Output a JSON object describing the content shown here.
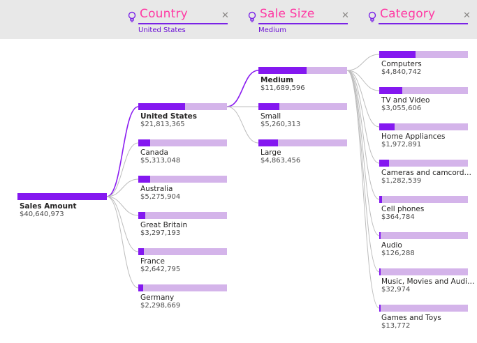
{
  "colors": {
    "fill": "#8418f0",
    "track": "#d4b4ea",
    "title": "#ff3ba4",
    "link_active": "#8a1cf0",
    "link": "#bdbdbd"
  },
  "columns": [
    {
      "title": "Country",
      "selected": "United States",
      "icon": "lightbulb-icon"
    },
    {
      "title": "Sale Size",
      "selected": "Medium",
      "icon": "lightbulb-icon"
    },
    {
      "title": "Category",
      "selected": "",
      "icon": "lightbulb-icon"
    }
  ],
  "root": {
    "label": "Sales Amount",
    "value": "$40,640,973",
    "fill": 1.0
  },
  "countries": [
    {
      "label": "United States",
      "value": "$21,813,365",
      "fill": 0.53,
      "selected": true
    },
    {
      "label": "Canada",
      "value": "$5,313,048",
      "fill": 0.13
    },
    {
      "label": "Australia",
      "value": "$5,275,904",
      "fill": 0.13
    },
    {
      "label": "Great Britain",
      "value": "$3,297,193",
      "fill": 0.08
    },
    {
      "label": "France",
      "value": "$2,642,795",
      "fill": 0.065
    },
    {
      "label": "Germany",
      "value": "$2,298,669",
      "fill": 0.057
    }
  ],
  "sale_sizes": [
    {
      "label": "Medium",
      "value": "$11,689,596",
      "fill": 0.54,
      "selected": true
    },
    {
      "label": "Small",
      "value": "$5,260,313",
      "fill": 0.24
    },
    {
      "label": "Large",
      "value": "$4,863,456",
      "fill": 0.22
    }
  ],
  "categories": [
    {
      "label": "Computers",
      "value": "$4,840,742",
      "fill": 0.41
    },
    {
      "label": "TV and Video",
      "value": "$3,055,606",
      "fill": 0.26
    },
    {
      "label": "Home Appliances",
      "value": "$1,972,891",
      "fill": 0.17
    },
    {
      "label": "Cameras and camcord…",
      "value": "$1,282,539",
      "fill": 0.11
    },
    {
      "label": "Cell phones",
      "value": "$364,784",
      "fill": 0.031
    },
    {
      "label": "Audio",
      "value": "$126,288",
      "fill": 0.011
    },
    {
      "label": "Music, Movies and Audi…",
      "value": "$32,974",
      "fill": 0.003
    },
    {
      "label": "Games and Toys",
      "value": "$13,772",
      "fill": 0.001
    }
  ]
}
